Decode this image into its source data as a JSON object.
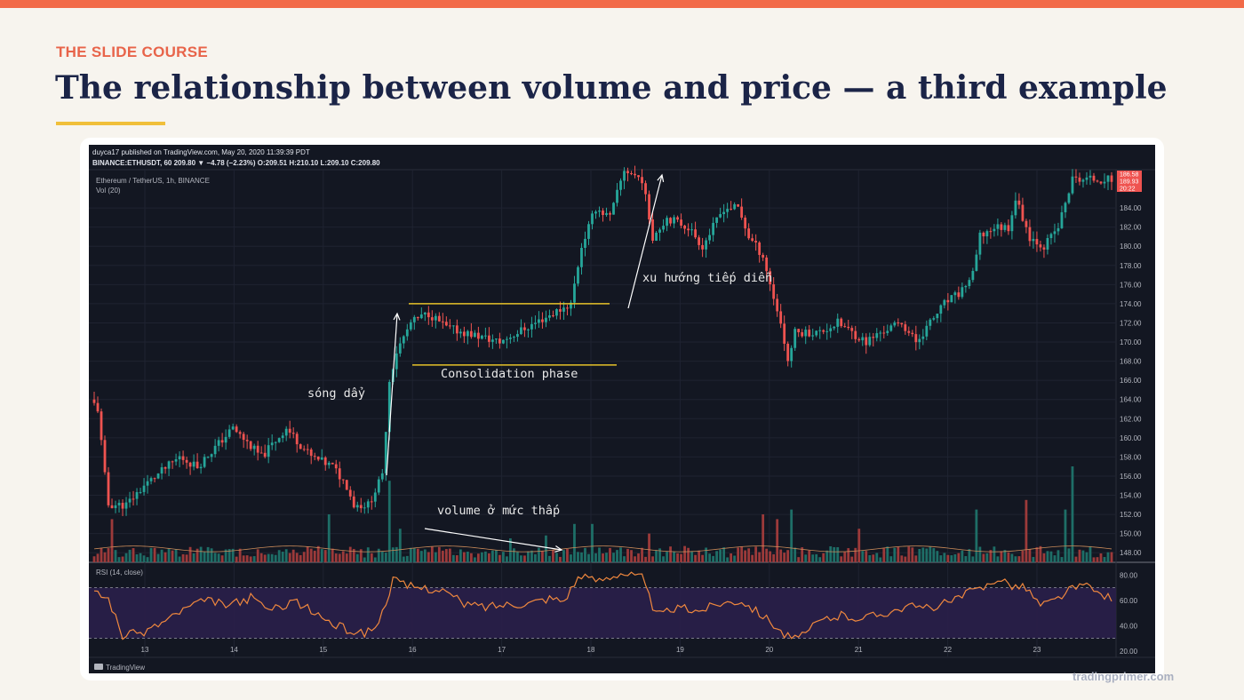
{
  "slide": {
    "eyebrow": "THE SLIDE COURSE",
    "title": "The relationship between volume and price — a third example",
    "footer": "tradingprimer.com"
  },
  "colors": {
    "top_bar": "#f26a48",
    "eyebrow": "#e8644a",
    "title": "#1b2447",
    "accent_line": "#f0bf3a",
    "chart_bg": "#131722",
    "bull": "#26a69a",
    "bear": "#ef5350",
    "rsi_line": "#f0883e",
    "rsi_band": "#2a1f4a",
    "level_line": "#e6c229",
    "annotation": "#ffffff"
  },
  "chart_header": {
    "published": "duyca17 published on TradingView.com, May 20, 2020 11:39:39 PDT",
    "ohlc": "BINANCE:ETHUSDT, 60 209.80 ▼ −4.78 (−2.23%) O:209.51 H:210.10 L:209.10 C:209.80",
    "symbol": "Ethereum / TetherUS, 1h, BINANCE",
    "vol_label": "Vol (20)",
    "rsi_label": "RSI (14, close)",
    "brand": "TradingView"
  },
  "chart_data": {
    "type": "candlestick",
    "symbol": "Ethereum / TetherUS, 1h, BINANCE",
    "x_tick_labels": [
      "13",
      "14",
      "15",
      "16",
      "17",
      "18",
      "19",
      "20",
      "21",
      "22",
      "23"
    ],
    "y_tick_labels": [
      "184.00",
      "182.00",
      "180.00",
      "178.00",
      "176.00",
      "174.00",
      "172.00",
      "170.00",
      "168.00",
      "166.00",
      "164.00",
      "162.00",
      "160.00",
      "158.00",
      "156.00",
      "154.00",
      "152.00",
      "150.00",
      "148.00"
    ],
    "ylim": [
      147,
      188
    ],
    "price_badges": [
      "186.58",
      "189.93",
      "20:22"
    ],
    "rsi": {
      "ylim": [
        15,
        90
      ],
      "tick_labels": [
        "80.00",
        "60.00",
        "40.00",
        "20.00"
      ],
      "band": [
        30,
        70
      ]
    },
    "price_anchors": [
      [
        0,
        164
      ],
      [
        2,
        163
      ],
      [
        4,
        156
      ],
      [
        5,
        153
      ],
      [
        10,
        153
      ],
      [
        15,
        155
      ],
      [
        25,
        158
      ],
      [
        30,
        157
      ],
      [
        40,
        161
      ],
      [
        48,
        158
      ],
      [
        55,
        161
      ],
      [
        62,
        158
      ],
      [
        68,
        157
      ],
      [
        72,
        155
      ],
      [
        74,
        153
      ],
      [
        78,
        153
      ],
      [
        82,
        156
      ],
      [
        84,
        166
      ],
      [
        86,
        169
      ],
      [
        90,
        172
      ],
      [
        95,
        173
      ],
      [
        100,
        171.5
      ],
      [
        105,
        171
      ],
      [
        110,
        170.5
      ],
      [
        115,
        170
      ],
      [
        120,
        171
      ],
      [
        125,
        172
      ],
      [
        130,
        173
      ],
      [
        135,
        174
      ],
      [
        138,
        180
      ],
      [
        142,
        184
      ],
      [
        146,
        183
      ],
      [
        150,
        188
      ],
      [
        155,
        187
      ],
      [
        158,
        181
      ],
      [
        162,
        183
      ],
      [
        168,
        182
      ],
      [
        172,
        180
      ],
      [
        178,
        184
      ],
      [
        182,
        184
      ],
      [
        185,
        181
      ],
      [
        189,
        179
      ],
      [
        191,
        176
      ],
      [
        194,
        172
      ],
      [
        196,
        168
      ],
      [
        198,
        171
      ],
      [
        205,
        171
      ],
      [
        210,
        172
      ],
      [
        214,
        171
      ],
      [
        218,
        170
      ],
      [
        222,
        171
      ],
      [
        228,
        172
      ],
      [
        232,
        170
      ],
      [
        236,
        172
      ],
      [
        240,
        174
      ],
      [
        244,
        175
      ],
      [
        248,
        177
      ],
      [
        250,
        181
      ],
      [
        254,
        182
      ],
      [
        258,
        182
      ],
      [
        260,
        185
      ],
      [
        264,
        181
      ],
      [
        268,
        180
      ],
      [
        272,
        182
      ],
      [
        276,
        187
      ],
      [
        280,
        187
      ],
      [
        284,
        187
      ]
    ],
    "volume_spikes": [
      [
        5,
        0.45
      ],
      [
        66,
        0.5
      ],
      [
        83,
        0.85
      ],
      [
        86,
        0.35
      ],
      [
        117,
        0.25
      ],
      [
        127,
        0.28
      ],
      [
        135,
        0.4
      ],
      [
        140,
        0.4
      ],
      [
        156,
        0.3
      ],
      [
        188,
        0.5
      ],
      [
        192,
        0.45
      ],
      [
        196,
        0.55
      ],
      [
        215,
        0.35
      ],
      [
        248,
        0.55
      ],
      [
        262,
        0.65
      ],
      [
        273,
        0.55
      ],
      [
        275,
        1.0
      ]
    ],
    "rsi_anchors": [
      [
        0,
        66
      ],
      [
        4,
        62
      ],
      [
        8,
        32
      ],
      [
        14,
        35
      ],
      [
        20,
        44
      ],
      [
        26,
        54
      ],
      [
        32,
        60
      ],
      [
        38,
        56
      ],
      [
        44,
        62
      ],
      [
        50,
        52
      ],
      [
        56,
        60
      ],
      [
        62,
        50
      ],
      [
        68,
        40
      ],
      [
        72,
        36
      ],
      [
        76,
        34
      ],
      [
        80,
        42
      ],
      [
        84,
        76
      ],
      [
        88,
        71
      ],
      [
        92,
        70
      ],
      [
        98,
        68
      ],
      [
        104,
        57
      ],
      [
        110,
        55
      ],
      [
        116,
        57
      ],
      [
        122,
        58
      ],
      [
        128,
        62
      ],
      [
        132,
        60
      ],
      [
        136,
        78
      ],
      [
        142,
        76
      ],
      [
        148,
        82
      ],
      [
        154,
        78
      ],
      [
        158,
        48
      ],
      [
        164,
        54
      ],
      [
        170,
        52
      ],
      [
        176,
        58
      ],
      [
        182,
        60
      ],
      [
        186,
        52
      ],
      [
        190,
        44
      ],
      [
        194,
        33
      ],
      [
        198,
        29
      ],
      [
        204,
        44
      ],
      [
        210,
        48
      ],
      [
        216,
        46
      ],
      [
        222,
        50
      ],
      [
        228,
        55
      ],
      [
        234,
        54
      ],
      [
        240,
        58
      ],
      [
        246,
        66
      ],
      [
        250,
        70
      ],
      [
        254,
        78
      ],
      [
        258,
        72
      ],
      [
        262,
        70
      ],
      [
        266,
        56
      ],
      [
        270,
        60
      ],
      [
        274,
        68
      ],
      [
        278,
        72
      ],
      [
        282,
        66
      ],
      [
        286,
        62
      ]
    ],
    "annotations": {
      "wave": "sóng dẩy",
      "consolidation": "Consolidation phase",
      "volume_low": "volume ở mức thấp",
      "trend_continues": "xu hướng tiếp diễn"
    },
    "consolidation_levels": [
      174,
      167.6
    ]
  }
}
